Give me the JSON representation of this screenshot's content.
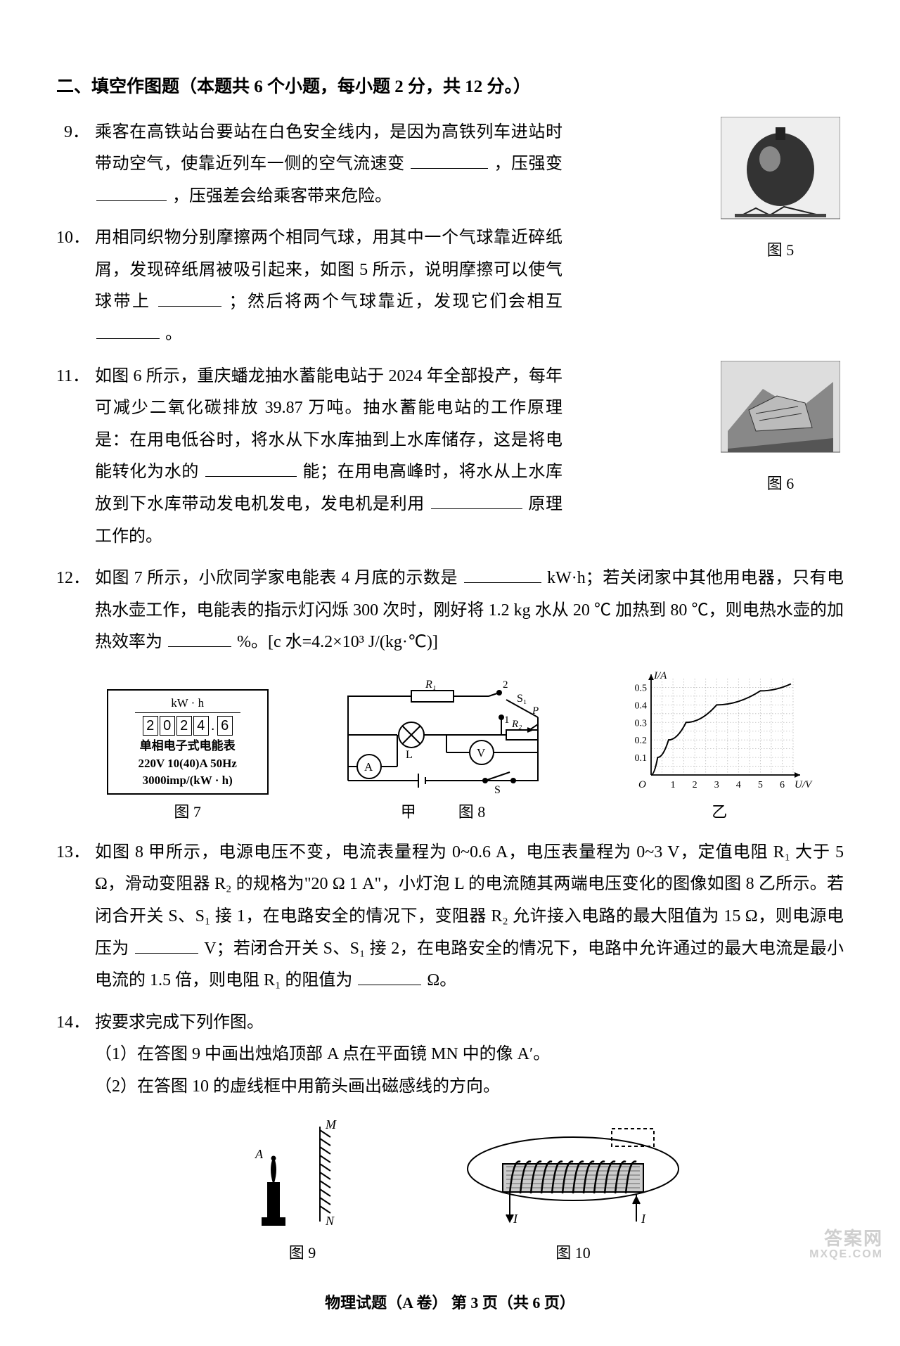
{
  "section": {
    "title": "二、填空作图题（本题共 6 个小题，每小题 2 分，共 12 分。）"
  },
  "q9": {
    "num": "9．",
    "text_a": "乘客在高铁站台要站在白色安全线内，是因为高铁列车进站时带动空气，使靠近列车一侧的空气流速变",
    "text_b": "，压强变",
    "text_c": "，压强差会给乘客带来危险。",
    "blank1_w": 110,
    "blank2_w": 100
  },
  "q10": {
    "num": "10．",
    "text_a": "用相同织物分别摩擦两个相同气球，用其中一个气球靠近碎纸屑，发现碎纸屑被吸引起来，如图 5 所示，说明摩擦可以使气球带上",
    "text_b": "；然后将两个气球靠近，发现它们会相互",
    "text_c": "。",
    "blank1_w": 90,
    "blank2_w": 90
  },
  "fig5": {
    "caption": "图 5"
  },
  "q11": {
    "num": "11．",
    "text_a": "如图 6 所示，重庆蟠龙抽水蓄能电站于 2024 年全部投产，每年可减少二氧化碳排放 39.87 万吨。抽水蓄能电站的工作原理是：在用电低谷时，将水从下水库抽到上水库储存，这是将电能转化为水的",
    "text_b": "能；在用电高峰时，将水从上水库放到下水库带动发电机发电，发电机是利用",
    "text_c": "原理工作的。",
    "blank1_w": 130,
    "blank2_w": 130
  },
  "fig6": {
    "caption": "图 6"
  },
  "q12": {
    "num": "12．",
    "text_a": "如图 7 所示，小欣同学家电能表 4 月底的示数是",
    "text_b": "kW·h；若关闭家中其他用电器，只有电热水壶工作，电能表的指示灯闪烁 300 次时，刚好将 1.2 kg 水从 20 ℃ 加热到 80 ℃，则电热水壶的加热效率为",
    "text_c": "%。[c 水=4.2×10³ J/(kg·℃)]",
    "blank1_w": 110,
    "blank2_w": 90
  },
  "fig7": {
    "caption": "图 7",
    "unit": "kW · h",
    "digits": [
      "2",
      "0",
      "2",
      "4",
      ".",
      "6"
    ],
    "line1": "单相电子式电能表",
    "line2": "220V 10(40)A  50Hz",
    "line3": "3000imp/(kW · h)"
  },
  "fig8jia": {
    "caption": "甲"
  },
  "fig8": {
    "caption": "图 8"
  },
  "fig8yi": {
    "caption": "乙",
    "chart": {
      "type": "line",
      "xlabel": "U/V",
      "ylabel": "I/A",
      "xlim": [
        0,
        6.5
      ],
      "ylim": [
        0,
        0.55
      ],
      "xticks": [
        1,
        2,
        3,
        4,
        5,
        6
      ],
      "yticks": [
        0.1,
        0.2,
        0.3,
        0.4,
        0.5
      ],
      "grid_color": "#bbbbbb",
      "axis_color": "#000000",
      "line_color": "#000000",
      "line_width": 2,
      "points": [
        [
          0,
          0
        ],
        [
          0.3,
          0.1
        ],
        [
          0.8,
          0.2
        ],
        [
          1.6,
          0.3
        ],
        [
          3,
          0.4
        ],
        [
          5,
          0.48
        ],
        [
          6.4,
          0.52
        ]
      ]
    }
  },
  "q13": {
    "num": "13．",
    "text_a": "如图 8 甲所示，电源电压不变，电流表量程为 0~0.6 A，电压表量程为 0~3 V，定值电阻 R₁ 大于 5 Ω，滑动变阻器 R₂ 的规格为\"20 Ω 1 A\"，小灯泡 L 的电流随其两端电压变化的图像如图 8 乙所示。若闭合开关 S、S₁ 接 1，在电路安全的情况下，变阻器 R₂ 允许接入电路的最大阻值为 15 Ω，则电源电压为",
    "text_b": "V；若闭合开关 S、S₁ 接 2，在电路安全的情况下，电路中允许通过的最大电流是最小电流的 1.5 倍，则电阻 R₁ 的阻值为",
    "text_c": "Ω。",
    "blank1_w": 90,
    "blank2_w": 90
  },
  "q14": {
    "num": "14．",
    "text": "按要求完成下列作图。",
    "sub1": "（1）在答图 9 中画出烛焰顶部 A 点在平面镜 MN 中的像 A′。",
    "sub2": "（2）在答图 10 的虚线框中用箭头画出磁感线的方向。"
  },
  "fig9": {
    "caption": "图 9"
  },
  "fig10": {
    "caption": "图 10"
  },
  "footer": "物理试题（A 卷）  第 3 页（共 6 页）",
  "watermark": {
    "line1": "答案网",
    "line2": "MXQE.COM"
  },
  "colors": {
    "bg": "#ffffff",
    "text": "#000000",
    "grid": "#bbbbbb"
  }
}
